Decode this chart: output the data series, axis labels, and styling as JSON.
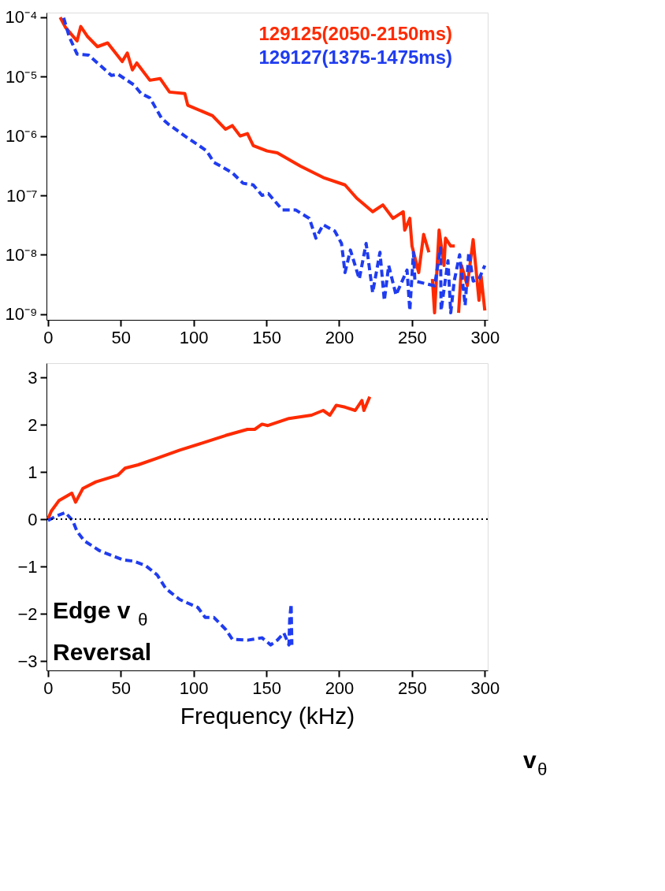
{
  "chart_data": [
    {
      "type": "line",
      "log": "y",
      "legend": "top right",
      "xlim": [
        -1,
        302
      ],
      "xticks": [
        0,
        50,
        100,
        150,
        200,
        250,
        300
      ],
      "ylim": [
        8e-10,
        0.00012
      ],
      "yticks": [
        {
          "value": 1e-09,
          "label": "10⁻⁹"
        },
        {
          "value": 1e-08,
          "label": "10⁻⁸"
        },
        {
          "value": 1e-07,
          "label": "10⁻⁷"
        },
        {
          "value": 1e-06,
          "label": "10⁻⁶"
        },
        {
          "value": 1e-05,
          "label": "10⁻⁵"
        },
        {
          "value": 0.0001,
          "label": "10⁻⁴"
        }
      ],
      "series": [
        {
          "name": "129125(2050-2150ms)",
          "color": "#ff2a00",
          "line_style": "solid",
          "x": [
            8.4,
            12,
            20,
            22.5,
            27,
            34,
            41,
            51,
            54.5,
            58,
            61,
            70,
            77,
            83.5,
            94,
            96,
            113,
            122,
            126.6,
            132,
            137,
            141,
            150.5,
            157.5,
            173.5,
            189,
            204,
            212,
            223,
            230,
            237,
            244,
            245,
            248.5,
            250,
            254.6,
            258,
            261.6,
            263,
            264,
            265.5,
            268.6,
            272,
            273,
            276.6,
            279.4,
            281,
            282,
            284,
            288,
            292,
            296,
            297.5,
            300
          ],
          "values": [
            0.0001,
            6.8e-05,
            4e-05,
            7e-05,
            4.8e-05,
            3.2e-05,
            3.7e-05,
            1.8e-05,
            2.5e-05,
            1.3e-05,
            1.7e-05,
            8.7e-06,
            9.3e-06,
            5.5e-06,
            5.2e-06,
            3.3e-06,
            2.2e-06,
            1.3e-06,
            1.5e-06,
            1e-06,
            1.1e-06,
            6.9e-07,
            5.6e-07,
            5.2e-07,
            3.1e-07,
            2e-07,
            1.5e-07,
            9e-08,
            5.3e-08,
            6.9e-08,
            4.1e-08,
            5.3e-08,
            2.6e-08,
            4.1e-08,
            1.4e-08,
            5e-09,
            2.2e-08,
            1.1e-08,
            null,
            3.9e-09,
            1.05e-09,
            2.6e-08,
            6.6e-09,
            1.9e-08,
            1.4e-08,
            1.4e-08,
            null,
            1.05e-09,
            6.6e-09,
            3e-09,
            1.8e-08,
            1.7e-09,
            4.3e-09,
            1.15e-09
          ]
        },
        {
          "name": "129127(1375-1475ms)",
          "color": "#1f3cf0",
          "line_style": "dashed",
          "x": [
            10.8,
            14.5,
            20,
            28,
            34,
            43.6,
            48,
            59,
            64,
            70,
            78,
            82.5,
            94,
            104.5,
            109,
            114,
            126.6,
            134,
            141,
            147,
            151.4,
            161,
            170,
            179.5,
            184,
            189,
            197,
            201.6,
            204,
            207.7,
            213.8,
            218.5,
            223,
            228,
            231,
            234,
            239,
            246.6,
            248.5,
            251,
            252,
            265.5,
            269.6,
            270,
            274.7,
            276.6,
            279,
            282.7,
            286.5,
            289,
            292,
            296,
            300
          ],
          "values": [
            9.8e-05,
            4.8e-05,
            2.4e-05,
            2.3e-05,
            1.7e-05,
            1.05e-05,
            1.1e-05,
            7.3e-06,
            5.2e-06,
            4.4e-06,
            2e-06,
            1.6e-06,
            1e-06,
            6.7e-07,
            5.6e-07,
            3.6e-07,
            2.4e-07,
            1.6e-07,
            1.5e-07,
            1e-07,
            1.07e-07,
            5.7e-08,
            5.7e-08,
            4.1e-08,
            1.9e-08,
            3.2e-08,
            2.5e-08,
            1.55e-08,
            5e-09,
            1.2e-08,
            3.9e-09,
            1.55e-08,
            2.3e-09,
            1.1e-08,
            1.7e-09,
            6.6e-09,
            2.1e-09,
            5.5e-09,
            1.15e-09,
            1.1e-08,
            3.6e-09,
            3e-09,
            1.3e-08,
            1.15e-09,
            7.9e-09,
            1.05e-09,
            3.6e-09,
            1e-08,
            1.4e-09,
            1.1e-08,
            3.6e-09,
            3.9e-09,
            6.6e-09
          ]
        }
      ]
    },
    {
      "type": "line",
      "xlabel": "Frequency (kHz)",
      "xlim": [
        -1,
        302
      ],
      "xticks": [
        0,
        50,
        100,
        150,
        200,
        250,
        300
      ],
      "ylim": [
        -3.2,
        3.3
      ],
      "yticks": [
        -3,
        -2,
        -1,
        0,
        1,
        2,
        3
      ],
      "ref_lines": [
        {
          "axis": "y",
          "value": 0,
          "color": "#000000",
          "line_style": "dotted"
        }
      ],
      "annotations": [
        "Edge v$_{θ}$",
        "Reversal",
        "v$_{θ}$"
      ],
      "series": [
        {
          "color": "#ff2a00",
          "line_style": "solid",
          "x": [
            0,
            2.3,
            7.5,
            16.4,
            19,
            24,
            33,
            48,
            53,
            62,
            75,
            90.5,
            106,
            122,
            137,
            142,
            147,
            151,
            165.5,
            181,
            189,
            193.6,
            198,
            204,
            211,
            215.6,
            217,
            221
          ],
          "values": [
            0,
            0.17,
            0.39,
            0.55,
            0.36,
            0.65,
            0.79,
            0.93,
            1.08,
            1.15,
            1.29,
            1.46,
            1.61,
            1.77,
            1.9,
            1.9,
            2.01,
            1.98,
            2.13,
            2.2,
            2.3,
            2.2,
            2.41,
            2.37,
            2.3,
            2.51,
            2.3,
            2.59
          ]
        },
        {
          "color": "#1f3cf0",
          "line_style": "dashed",
          "x": [
            0,
            6,
            12,
            17,
            20,
            25,
            35.6,
            51.6,
            59,
            67,
            75,
            81,
            90.5,
            103,
            108,
            114,
            122,
            126.6,
            137,
            147,
            153,
            157.5,
            162,
            165.5,
            166,
            167,
            167.5
          ],
          "values": [
            -0.03,
            0.07,
            0.14,
            -0.03,
            -0.26,
            -0.46,
            -0.67,
            -0.86,
            -0.89,
            -0.98,
            -1.18,
            -1.47,
            -1.7,
            -1.87,
            -2.08,
            -2.08,
            -2.33,
            -2.54,
            -2.56,
            -2.51,
            -2.66,
            -2.56,
            -2.41,
            -2.66,
            -2.13,
            -1.8,
            -2.66
          ]
        }
      ]
    }
  ]
}
